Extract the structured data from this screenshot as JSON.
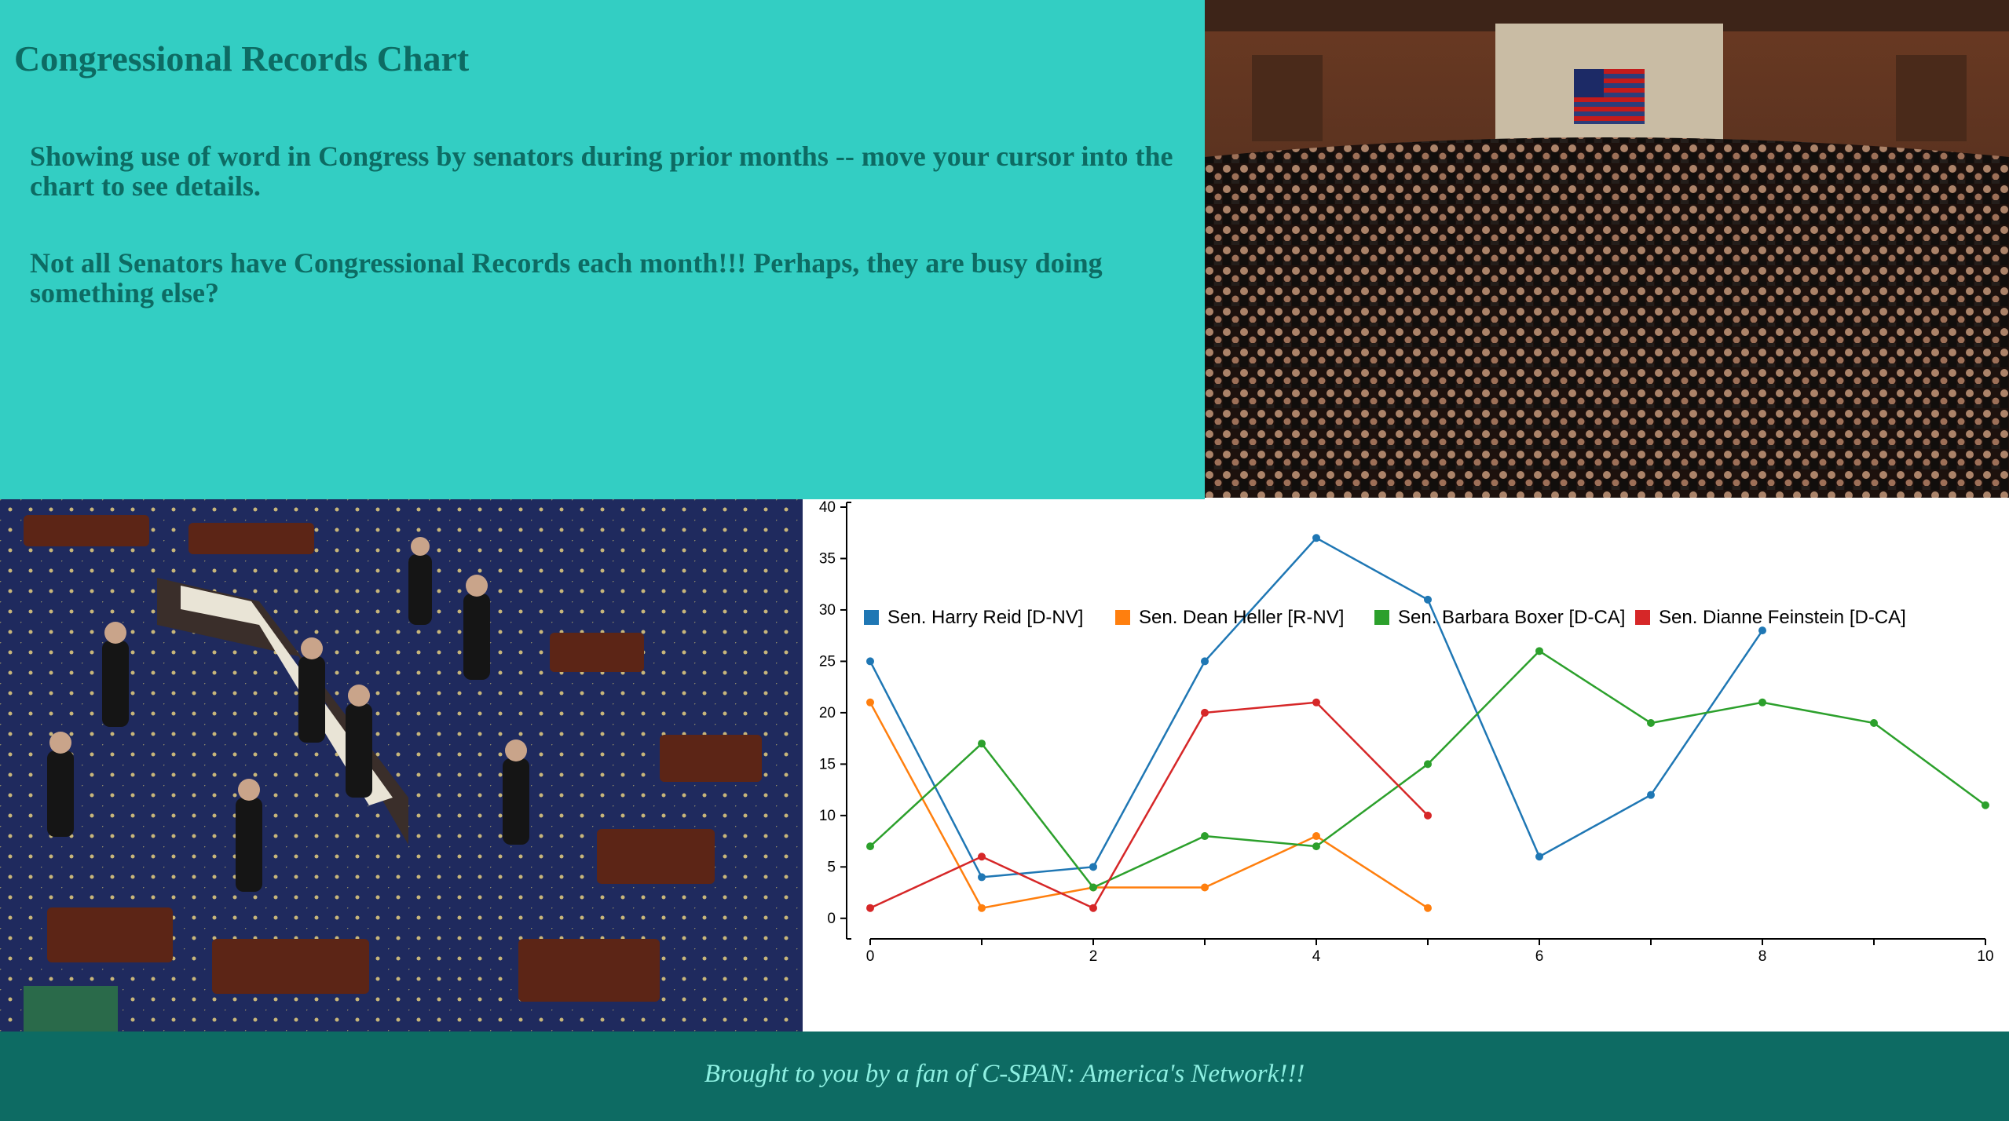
{
  "header": {
    "title": "Congressional Records Chart",
    "intro_1": "Showing use of word in Congress by senators during prior months -- move your cursor into the chart to see details.",
    "intro_2": "Not all Senators have Congressional Records each month!!! Perhaps, they are busy doing something else?"
  },
  "footer": {
    "text": "Brought to you by a fan of C-SPAN: America's Network!!!"
  },
  "colors": {
    "header_bg": "#33cec3",
    "title_text": "#0d6b63",
    "footer_bg": "#0d6b63",
    "footer_text": "#8ef0e2"
  },
  "chart_data": {
    "type": "line",
    "title": "",
    "xlabel": "",
    "ylabel": "",
    "xlim": [
      0,
      10
    ],
    "ylim": [
      -2,
      40
    ],
    "x_ticks": [
      0,
      1,
      2,
      3,
      4,
      5,
      6,
      7,
      8,
      9,
      10
    ],
    "x_tick_labels": [
      "0",
      "",
      "2",
      "",
      "4",
      "",
      "6",
      "",
      "8",
      "",
      "10"
    ],
    "y_ticks": [
      0,
      5,
      10,
      15,
      20,
      25,
      30,
      35,
      40
    ],
    "grid": false,
    "legend_position": "bottom",
    "series": [
      {
        "name": "Sen. Harry Reid [D-NV]",
        "color": "#1f77b4",
        "points": [
          [
            0,
            25
          ],
          [
            1,
            4
          ],
          [
            2,
            5
          ],
          [
            3,
            25
          ],
          [
            4,
            37
          ],
          [
            5,
            31
          ],
          [
            6,
            6
          ],
          [
            7,
            12
          ],
          [
            8,
            28
          ]
        ]
      },
      {
        "name": "Sen. Dean Heller [R-NV]",
        "color": "#ff7f0e",
        "points": [
          [
            0,
            21
          ],
          [
            1,
            1
          ],
          [
            2,
            3
          ],
          [
            3,
            3
          ],
          [
            4,
            8
          ],
          [
            5,
            1
          ]
        ]
      },
      {
        "name": "Sen. Barbara Boxer [D-CA]",
        "color": "#2ca02c",
        "points": [
          [
            0,
            7
          ],
          [
            1,
            17
          ],
          [
            2,
            3
          ],
          [
            3,
            8
          ],
          [
            4,
            7
          ],
          [
            5,
            15
          ],
          [
            6,
            26
          ],
          [
            7,
            19
          ],
          [
            8,
            21
          ],
          [
            9,
            19
          ],
          [
            10,
            11
          ]
        ]
      },
      {
        "name": "Sen. Dianne Feinstein [D-CA]",
        "color": "#d62728",
        "points": [
          [
            0,
            1
          ],
          [
            1,
            6
          ],
          [
            2,
            1
          ],
          [
            3,
            20
          ],
          [
            4,
            21
          ],
          [
            5,
            10
          ]
        ]
      }
    ]
  }
}
